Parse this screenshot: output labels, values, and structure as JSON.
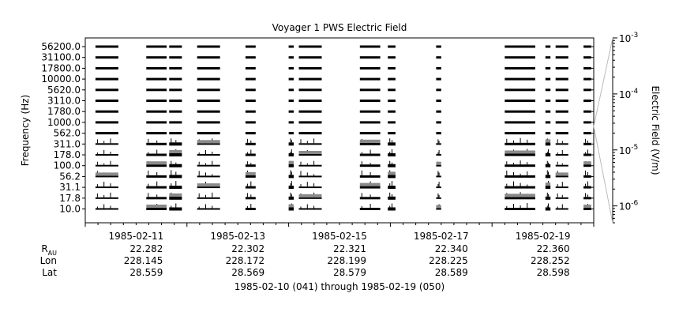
{
  "chart_data": {
    "type": "spectrogram-strips",
    "title": "Voyager 1 PWS Electric Field",
    "ylabel": "Frequency (Hz)",
    "y2label": "Electric Field (V/m)",
    "y_ticks": [
      "56200.0",
      "31100.0",
      "17800.0",
      "10000.0",
      "5620.0",
      "3110.0",
      "1780.0",
      "1000.0",
      "562.0",
      "311.0",
      "178.0",
      "100.0",
      "56.2",
      "31.1",
      "17.8",
      "10.0"
    ],
    "x_ticks": [
      {
        "date": "1985-02-11",
        "day": 1.0
      },
      {
        "date": "1985-02-13",
        "day": 3.0
      },
      {
        "date": "1985-02-15",
        "day": 5.0
      },
      {
        "date": "1985-02-17",
        "day": 7.0
      },
      {
        "date": "1985-02-19",
        "day": 9.0
      }
    ],
    "xlim_days": [
      0.0,
      10.0
    ],
    "colorbar": {
      "scale": "log",
      "range": [
        5e-07,
        0.001
      ],
      "ticks": [
        {
          "base": "10",
          "exp": "-3",
          "value": 0.001
        },
        {
          "base": "10",
          "exp": "-4",
          "value": 0.0001
        },
        {
          "base": "10",
          "exp": "-5",
          "value": 1e-05
        },
        {
          "base": "10",
          "exp": "-6",
          "value": 1e-06
        }
      ]
    },
    "segments_days": [
      [
        0.2,
        0.65
      ],
      [
        1.2,
        1.6
      ],
      [
        1.65,
        1.9
      ],
      [
        2.2,
        2.65
      ],
      [
        3.15,
        3.35
      ],
      [
        4.0,
        4.1
      ],
      [
        4.2,
        4.65
      ],
      [
        5.4,
        5.8
      ],
      [
        5.95,
        6.1
      ],
      [
        6.9,
        7.0
      ],
      [
        8.25,
        8.85
      ],
      [
        9.05,
        9.15
      ],
      [
        9.25,
        9.5
      ],
      [
        9.8,
        9.95
      ]
    ],
    "annotation": {
      "rows": [
        {
          "label": "R",
          "sub": "AU",
          "values": [
            "22.282",
            "22.302",
            "22.321",
            "22.340",
            "22.360"
          ]
        },
        {
          "label": "Lon",
          "sub": "",
          "values": [
            "228.145",
            "228.172",
            "228.199",
            "228.225",
            "228.252"
          ]
        },
        {
          "label": "Lat",
          "sub": "",
          "values": [
            "28.559",
            "28.569",
            "28.579",
            "28.589",
            "28.598"
          ]
        }
      ],
      "footer": "1985-02-10 (041) through 1985-02-19 (050)"
    }
  }
}
